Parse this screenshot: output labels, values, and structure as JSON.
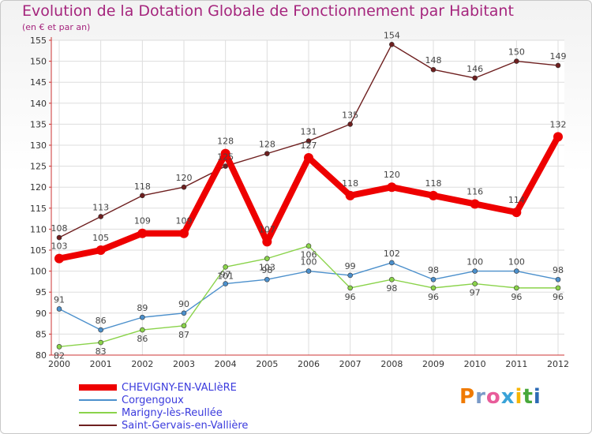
{
  "chart_data": {
    "type": "line",
    "title": "Evolution de la Dotation Globale de Fonctionnement par Habitant",
    "subtitle": "(en € et par an)",
    "xlabel": "",
    "ylabel": "",
    "ylim": [
      80,
      155
    ],
    "yticks": [
      80,
      85,
      90,
      95,
      100,
      105,
      110,
      115,
      120,
      125,
      130,
      135,
      140,
      145,
      150,
      155
    ],
    "categories": [
      "2000",
      "2001",
      "2002",
      "2003",
      "2004",
      "2005",
      "2006",
      "2007",
      "2008",
      "2009",
      "2010",
      "2011",
      "2012"
    ],
    "grid": true,
    "legend_position": "bottom-left",
    "series": [
      {
        "name": "CHEVIGNY-EN-VALIèRE",
        "color": "#ee0000",
        "values": [
          103,
          105,
          109,
          109,
          128,
          107,
          127,
          118,
          120,
          118,
          116,
          114,
          132
        ]
      },
      {
        "name": "Corgengoux",
        "color": "#4c90cc",
        "values": [
          91,
          86,
          89,
          90,
          97,
          98,
          100,
          99,
          102,
          98,
          100,
          100,
          98
        ]
      },
      {
        "name": "Marigny-lès-Reullée",
        "color": "#8ad34a",
        "values": [
          82,
          83,
          86,
          87,
          101,
          103,
          106,
          96,
          98,
          96,
          97,
          96,
          96
        ]
      },
      {
        "name": "Saint-Gervais-en-Vallière",
        "color": "#6e1f1f",
        "values": [
          108,
          113,
          118,
          120,
          125,
          128,
          131,
          135,
          154,
          148,
          146,
          150,
          149
        ]
      }
    ]
  },
  "logo": {
    "letters": [
      "P",
      "r",
      "o",
      "x",
      "i",
      "t",
      "i"
    ],
    "colors": [
      "#f07a00",
      "#7a9ac8",
      "#e85c9a",
      "#3aa3d8",
      "#f7b500",
      "#47a83a",
      "#2d6bb5"
    ]
  }
}
